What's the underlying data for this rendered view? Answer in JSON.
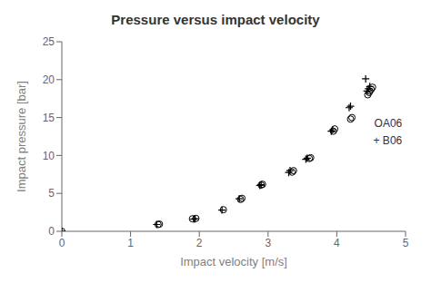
{
  "chart_data": {
    "type": "scatter",
    "title": "Pressure versus impact velocity",
    "xlabel": "Impact velocity [m/s]",
    "ylabel": "Impact pressure [bar]",
    "xlim": [
      0,
      5
    ],
    "ylim": [
      0,
      25
    ],
    "xticks": [
      0,
      1,
      2,
      3,
      4,
      5
    ],
    "yticks": [
      0,
      5,
      10,
      15,
      20,
      25
    ],
    "grid": false,
    "series": [
      {
        "marker": "circle",
        "color": "black",
        "x": [
          0.0,
          1.4,
          1.42,
          1.9,
          1.95,
          2.35,
          2.6,
          2.62,
          2.9,
          2.92,
          3.35,
          3.37,
          3.6,
          3.62,
          3.95,
          3.97,
          4.2,
          4.22,
          4.45,
          4.47,
          4.48,
          4.5,
          4.52
        ],
        "values": [
          0.0,
          0.9,
          0.95,
          1.65,
          1.7,
          2.85,
          4.2,
          4.35,
          6.1,
          6.2,
          7.8,
          8.0,
          9.6,
          9.7,
          13.2,
          13.5,
          14.8,
          15.0,
          18.0,
          18.3,
          18.5,
          18.7,
          19.0
        ]
      },
      {
        "marker": "plus",
        "color": "black",
        "x": [
          0.0,
          1.38,
          1.92,
          1.94,
          2.33,
          2.58,
          2.88,
          2.9,
          3.3,
          3.32,
          3.55,
          3.57,
          3.92,
          3.94,
          4.18,
          4.2,
          4.42,
          4.44,
          4.46,
          4.48
        ],
        "values": [
          0.0,
          0.9,
          1.6,
          1.65,
          2.8,
          4.3,
          6.05,
          6.15,
          7.75,
          8.0,
          9.5,
          9.65,
          13.2,
          13.4,
          16.3,
          16.5,
          20.1,
          18.5,
          18.8,
          19.1
        ]
      }
    ],
    "annotations": [
      {
        "text": "OA06"
      },
      {
        "text": "+ B06"
      }
    ]
  }
}
